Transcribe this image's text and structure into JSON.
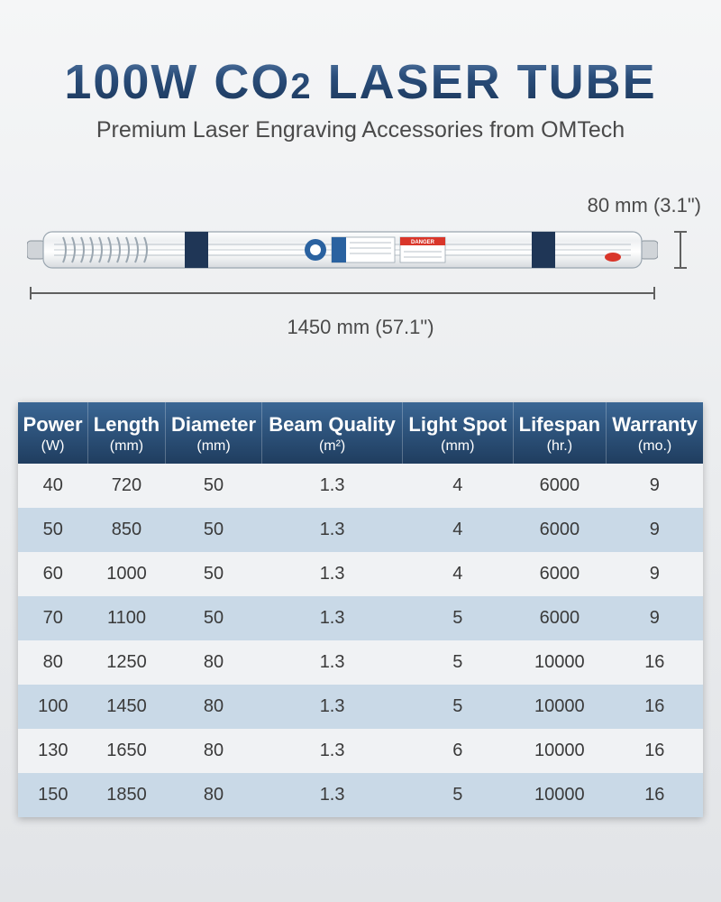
{
  "header": {
    "title_prefix": "100W CO",
    "title_sub": "2",
    "title_suffix": " LASER TUBE",
    "subtitle": "Premium Laser Engraving Accessories from OMTech"
  },
  "diagram": {
    "diameter_label": "80 mm (3.1\")",
    "length_label": "1450 mm (57.1\")",
    "tube_stroke": "#9aa6b0",
    "tube_fill_light": "#f4f5f6",
    "tube_fill_dark": "#dbdfe3",
    "band_color": "#1f3656",
    "label_blue": "#2a62a0",
    "label_white": "#ffffff",
    "label_red": "#d9362a",
    "dim_line_color": "#606060"
  },
  "table": {
    "header_gradient_top": "#3a6694",
    "header_gradient_bottom": "#1f3d5f",
    "row_odd_bg": "#f0f2f4",
    "row_even_bg": "#c9d9e7",
    "columns": [
      {
        "label": "Power",
        "unit": "(W)"
      },
      {
        "label": "Length",
        "unit": "(mm)"
      },
      {
        "label": "Diameter",
        "unit": "(mm)"
      },
      {
        "label": "Beam Quality",
        "unit": "(m²)"
      },
      {
        "label": "Light Spot",
        "unit": "(mm)"
      },
      {
        "label": "Lifespan",
        "unit": "(hr.)"
      },
      {
        "label": "Warranty",
        "unit": "(mo.)"
      }
    ],
    "rows": [
      [
        "40",
        "720",
        "50",
        "1.3",
        "4",
        "6000",
        "9"
      ],
      [
        "50",
        "850",
        "50",
        "1.3",
        "4",
        "6000",
        "9"
      ],
      [
        "60",
        "1000",
        "50",
        "1.3",
        "4",
        "6000",
        "9"
      ],
      [
        "70",
        "1100",
        "50",
        "1.3",
        "5",
        "6000",
        "9"
      ],
      [
        "80",
        "1250",
        "80",
        "1.3",
        "5",
        "10000",
        "16"
      ],
      [
        "100",
        "1450",
        "80",
        "1.3",
        "5",
        "10000",
        "16"
      ],
      [
        "130",
        "1650",
        "80",
        "1.3",
        "6",
        "10000",
        "16"
      ],
      [
        "150",
        "1850",
        "80",
        "1.3",
        "5",
        "10000",
        "16"
      ]
    ]
  }
}
